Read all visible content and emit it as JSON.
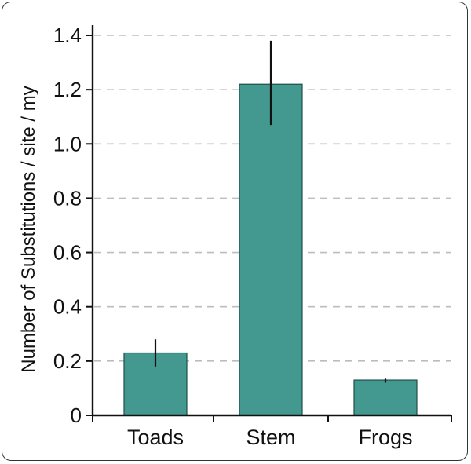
{
  "chart_data": {
    "type": "bar",
    "title": "",
    "xlabel": "",
    "ylabel": "Number of Substitutions / site /  my",
    "categories": [
      "Toads",
      "Stem",
      "Frogs"
    ],
    "values": [
      0.23,
      1.22,
      0.13
    ],
    "error": [
      {
        "low": 0.18,
        "high": 0.28
      },
      {
        "low": 1.07,
        "high": 1.38
      },
      {
        "low": 0.12,
        "high": 0.135
      }
    ],
    "ylim": [
      0,
      1.4
    ],
    "yticks": [
      0,
      0.2,
      0.4,
      0.6,
      0.8,
      1.0,
      1.2,
      1.4
    ],
    "ytick_labels": [
      "0",
      "0.2",
      "0.4",
      "0.6",
      "0.8",
      "1.0",
      "1.2",
      "1.4"
    ],
    "grid": "horizontal-dashed",
    "colors": {
      "bar": "#43998f",
      "bar_edge": "#1f4f49",
      "grid": "#bdbdbd",
      "axis": "#111111",
      "error_bar": "#111111"
    }
  }
}
